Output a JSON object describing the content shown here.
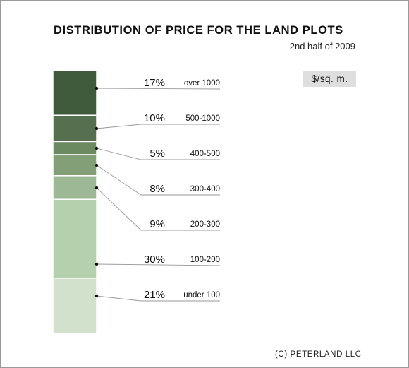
{
  "chart_data": {
    "type": "bar",
    "title": "DISTRIBUTION OF PRICE FOR THE LAND PLOTS",
    "subtitle": "2nd half of 2009",
    "unit": "$/sq. m.",
    "categories": [
      "over 1000",
      "500-1000",
      "400-500",
      "300-400",
      "200-300",
      "100-200",
      "under 100"
    ],
    "values": [
      17,
      10,
      5,
      8,
      9,
      30,
      21
    ],
    "value_labels": [
      "17%",
      "10%",
      "5%",
      "8%",
      "9%",
      "30%",
      "21%"
    ],
    "colors": [
      "#3e5a3b",
      "#56704f",
      "#6b8a62",
      "#829f77",
      "#9cb894",
      "#b5d0ad",
      "#d1e1cc"
    ],
    "stacked": true,
    "legend": "none"
  },
  "footer": {
    "copyright": "(C) PETERLAND LLC"
  }
}
